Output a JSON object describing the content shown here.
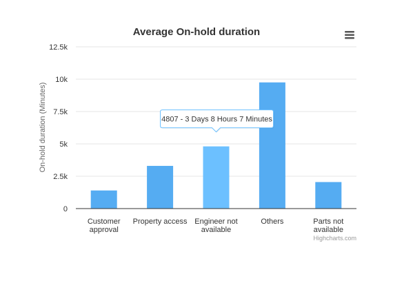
{
  "chart_data": {
    "type": "bar",
    "title": "Average On-hold duration",
    "ylabel": "On-hold duration (Minutes)",
    "xlabel": "",
    "categories": [
      [
        "Customer",
        "approval"
      ],
      [
        "Property access"
      ],
      [
        "Engineer not",
        "available"
      ],
      [
        "Others"
      ],
      [
        "Parts not",
        "available"
      ]
    ],
    "values": [
      1400,
      3300,
      4807,
      9750,
      2050
    ],
    "ylim": [
      0,
      12500
    ],
    "yticks": [
      0,
      2500,
      5000,
      7500,
      10000,
      12500
    ],
    "ytick_labels": [
      "0",
      "2.5k",
      "5k",
      "7.5k",
      "10k",
      "12.5k"
    ],
    "grid": true,
    "colors": {
      "bar": "#55acf2",
      "bar_hover": "#6cc0ff"
    },
    "hover_index": 2,
    "tooltip": "4807 - 3 Days 8 Hours 7 Minutes"
  },
  "credits": "Highcharts.com",
  "menu_icon": "hamburger-menu-icon"
}
